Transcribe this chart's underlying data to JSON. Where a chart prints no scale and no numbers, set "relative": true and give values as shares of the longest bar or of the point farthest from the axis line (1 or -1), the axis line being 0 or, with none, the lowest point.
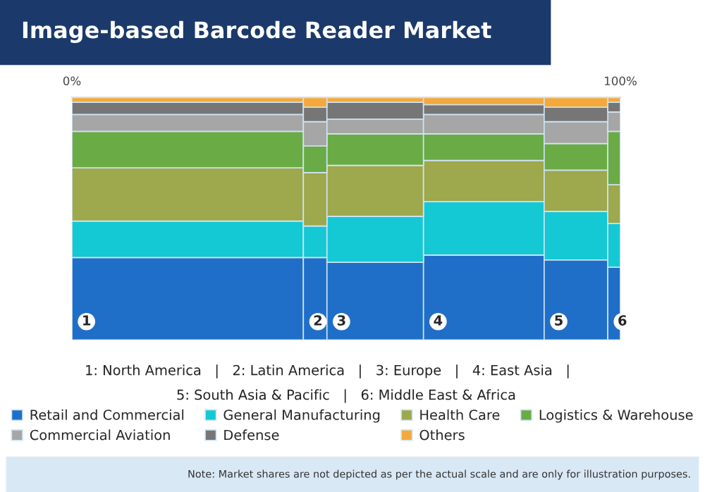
{
  "chart_data": {
    "type": "bar",
    "title": "Image-based Barcode Reader Market",
    "stacked": true,
    "relative": true,
    "x": [
      21.1,
      44.35,
      55.3,
      75.1,
      91.9,
      98.85
    ],
    "xlim": [
      0,
      100
    ],
    "xticks": [
      {
        "value": 0,
        "label": "0%"
      },
      {
        "value": 100,
        "label": "100%"
      }
    ],
    "series": [
      {
        "name": "Retail and Commercial",
        "color": "#1f6fc8",
        "values": [
          0.34,
          0.34,
          0.32,
          0.35,
          0.33,
          0.3
        ]
      },
      {
        "name": "General Manufacturing",
        "color": "#14c8d4",
        "values": [
          0.15,
          0.13,
          0.19,
          0.22,
          0.2,
          0.18
        ]
      },
      {
        "name": "Health Care",
        "color": "#9ea84c",
        "values": [
          0.22,
          0.22,
          0.21,
          0.17,
          0.17,
          0.16
        ]
      },
      {
        "name": "Logistics & Warehouse",
        "color": "#6aab46",
        "values": [
          0.15,
          0.11,
          0.13,
          0.11,
          0.11,
          0.22
        ]
      },
      {
        "name": "Commercial Aviation",
        "color": "#a6a6a6",
        "values": [
          0.07,
          0.1,
          0.06,
          0.08,
          0.09,
          0.08
        ]
      },
      {
        "name": "Defense",
        "color": "#767676",
        "values": [
          0.05,
          0.06,
          0.07,
          0.04,
          0.06,
          0.04
        ]
      },
      {
        "name": "Others",
        "color": "#f5a93a",
        "values": [
          0.02,
          0.04,
          0.02,
          0.03,
          0.04,
          0.02
        ]
      }
    ],
    "annotations": [
      {
        "text": "1",
        "x": 0,
        "y": 0
      },
      {
        "text": "2",
        "x": 42.2,
        "y": 0
      },
      {
        "text": "3",
        "x": 46.5,
        "y": 0
      },
      {
        "text": "4",
        "x": 64.1,
        "y": 0
      },
      {
        "text": "5",
        "x": 86.1,
        "y": 0
      },
      {
        "text": "6",
        "x": 97.7,
        "y": 0
      },
      "1: North America   |   2: Latin America   |   3: Europe   |   4: East Asia   |",
      "5: South Asia & Pacific   |   6: Middle East & Africa",
      "Note: Market shares are not depicted as per the actual scale and are only for illustration purposes."
    ],
    "legend": "bottom",
    "grid": false
  }
}
